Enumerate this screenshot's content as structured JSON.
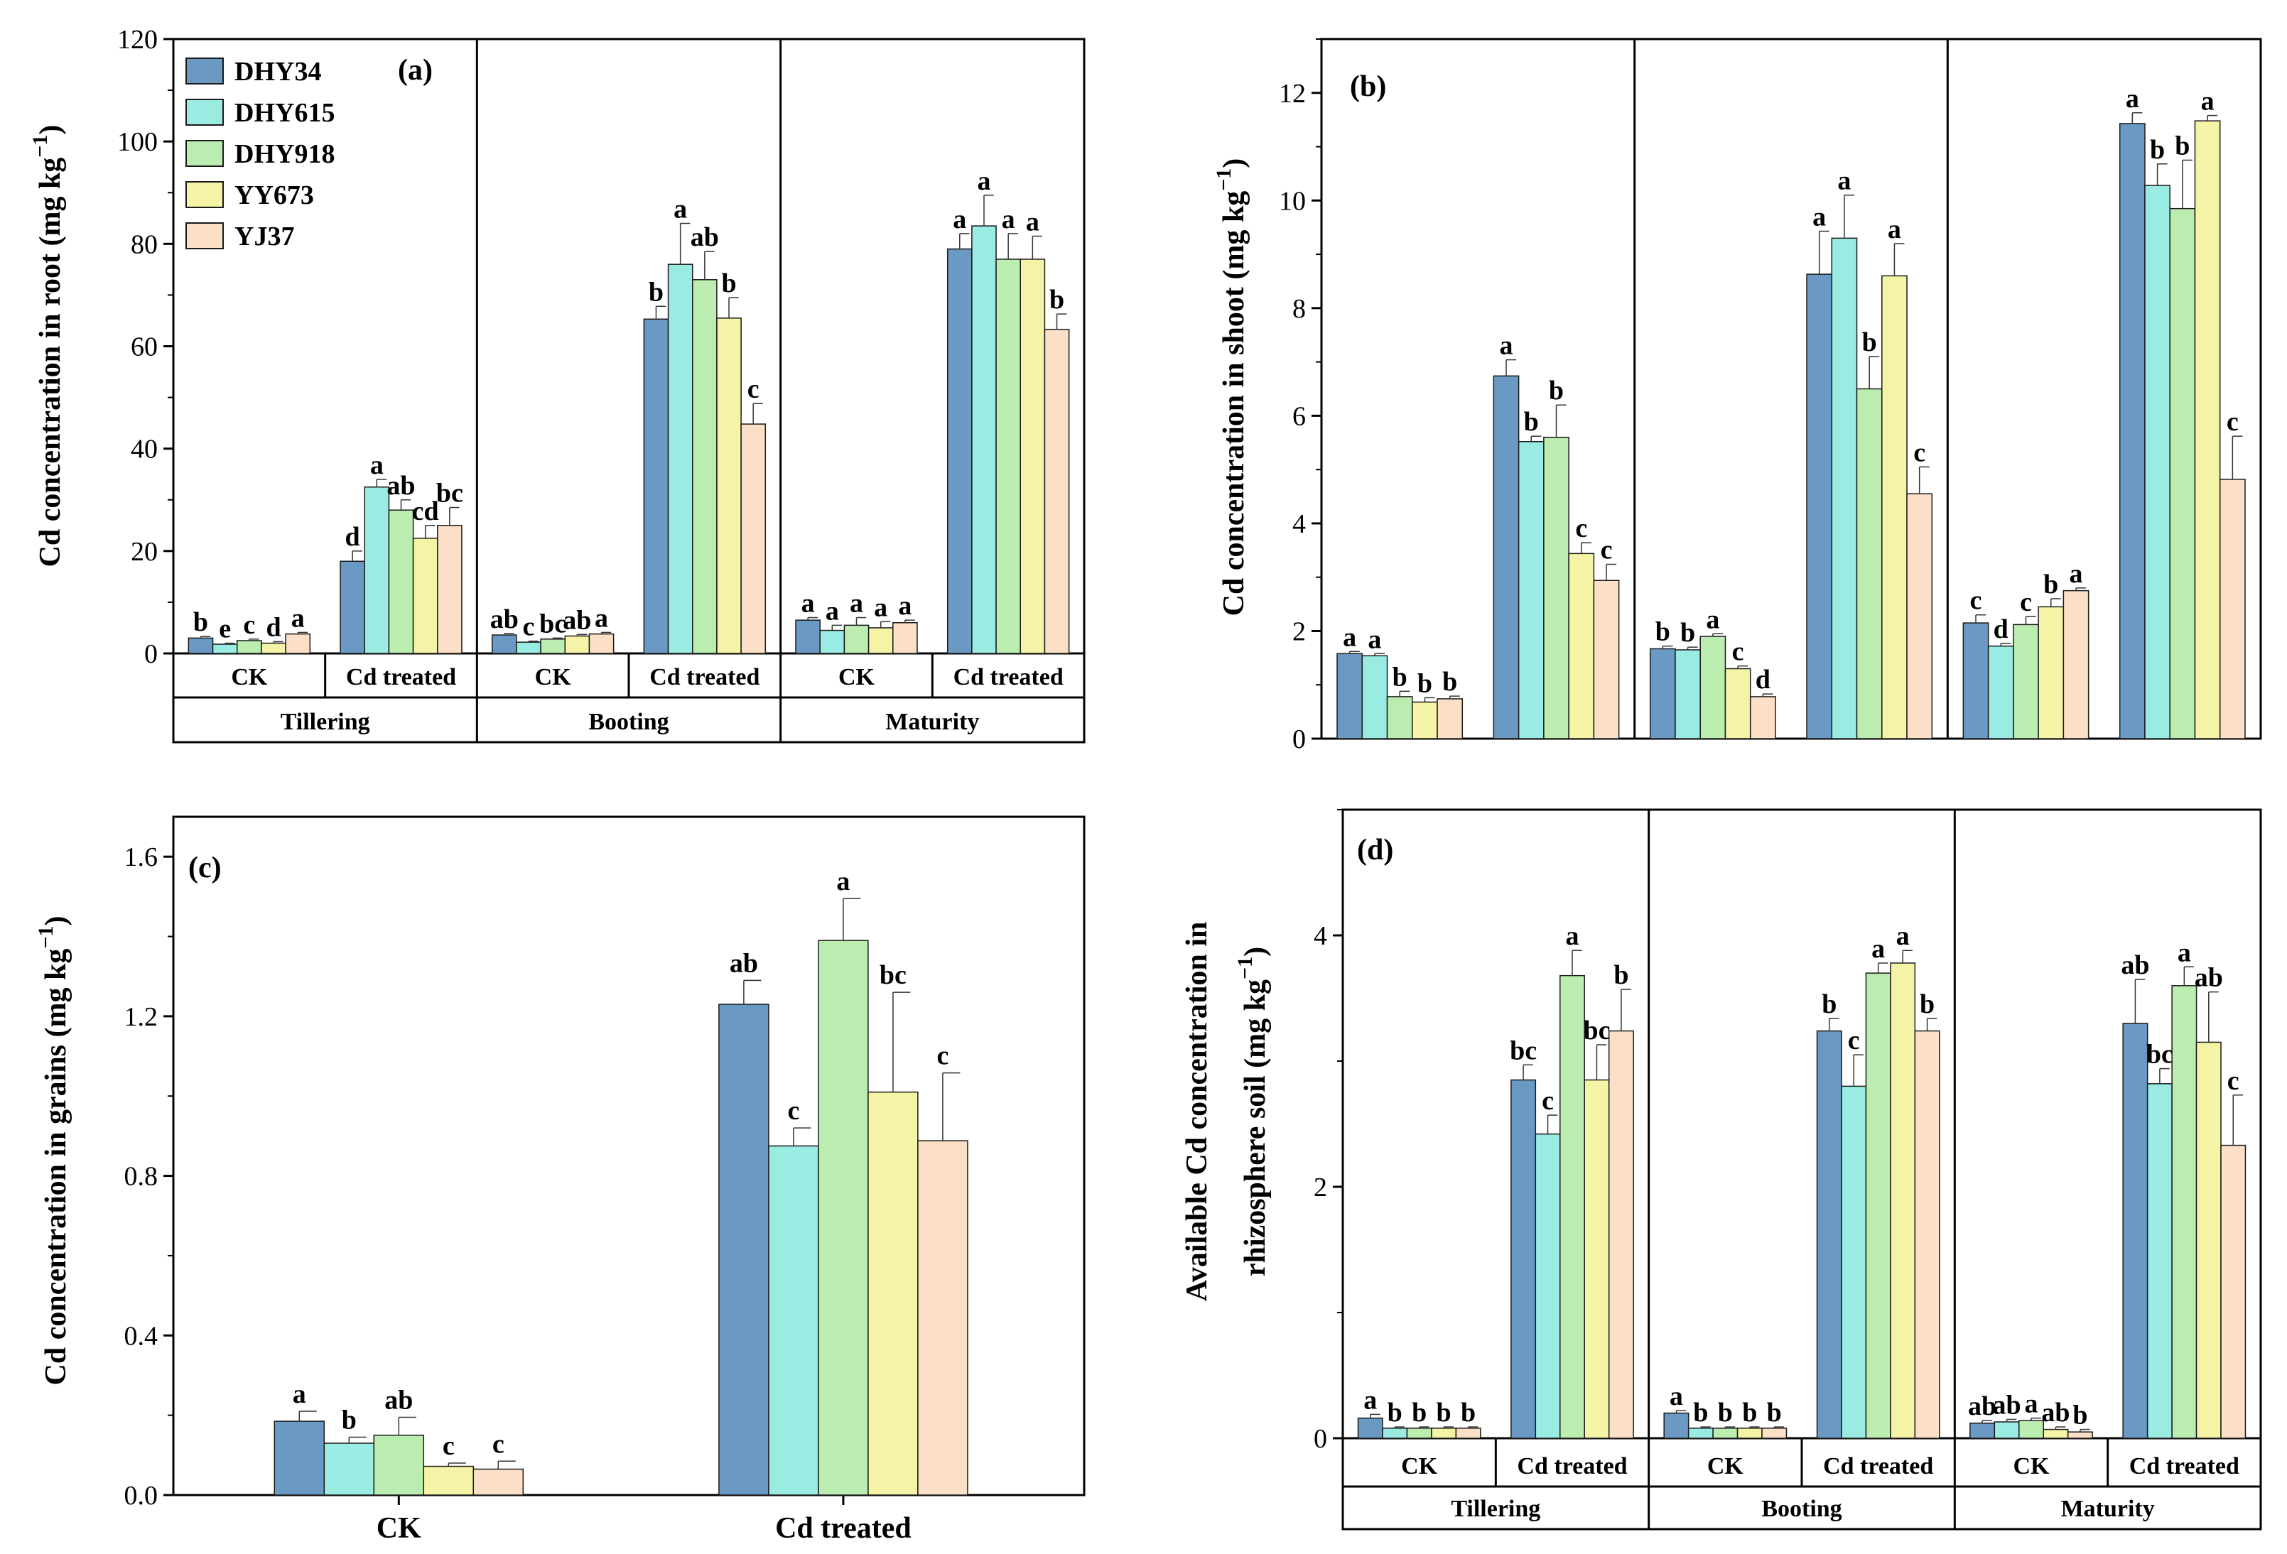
{
  "colors": {
    "DHY34": "#6a9ac4",
    "DHY615": "#9aece2",
    "DHY918": "#bbecb0",
    "YY673": "#f5f3a6",
    "YJ37": "#fbdfc7"
  },
  "chart_data": [
    {
      "id": "a",
      "type": "bar",
      "panel_label": "(a)",
      "ylabel": "Cd concentration in root (mg kg",
      "ylabel_sup": "−1",
      "ylabel_end": ")",
      "ylim": [
        0,
        120
      ],
      "yticks": [
        "0",
        "20",
        "40",
        "60",
        "80",
        "100",
        "120"
      ],
      "ytick_values": [
        0,
        20,
        40,
        60,
        80,
        100,
        120
      ],
      "legend": {
        "position": "top-left",
        "entries": [
          "DHY34",
          "DHY615",
          "DHY918",
          "YY673",
          "YJ37"
        ]
      },
      "stages": [
        "Tillering",
        "Booting",
        "Maturity"
      ],
      "treatments": [
        "CK",
        "Cd treated"
      ],
      "series_names": [
        "DHY34",
        "DHY615",
        "DHY918",
        "YY673",
        "YJ37"
      ],
      "groups": [
        {
          "stage": "Tillering",
          "treatment": "CK",
          "values": [
            3.0,
            1.8,
            2.5,
            2.0,
            3.8
          ],
          "errors": [
            0.3,
            0.2,
            0.3,
            0.3,
            0.3
          ],
          "letters": [
            "b",
            "e",
            "c",
            "d",
            "a"
          ]
        },
        {
          "stage": "Tillering",
          "treatment": "Cd treated",
          "values": [
            18,
            32.5,
            28,
            22.5,
            25
          ],
          "errors": [
            2,
            1.5,
            2,
            2.5,
            3.5
          ],
          "letters": [
            "d",
            "a",
            "ab",
            "cd",
            "bc"
          ]
        },
        {
          "stage": "Booting",
          "treatment": "CK",
          "values": [
            3.6,
            2.2,
            2.8,
            3.4,
            3.8
          ],
          "errors": [
            0.3,
            0.2,
            0.2,
            0.3,
            0.3
          ],
          "letters": [
            "ab",
            "c",
            "bc",
            "ab",
            "a"
          ]
        },
        {
          "stage": "Booting",
          "treatment": "Cd treated",
          "values": [
            65.3,
            76,
            73,
            65.5,
            44.8
          ],
          "errors": [
            2.5,
            8,
            5.5,
            4,
            4
          ],
          "letters": [
            "b",
            "a",
            "ab",
            "b",
            "c"
          ]
        },
        {
          "stage": "Maturity",
          "treatment": "CK",
          "values": [
            6.5,
            4.5,
            5.5,
            5.0,
            6.0
          ],
          "errors": [
            0.5,
            1.0,
            1.5,
            1.2,
            0.5
          ],
          "letters": [
            "a",
            "a",
            "a",
            "a",
            "a"
          ]
        },
        {
          "stage": "Maturity",
          "treatment": "Cd treated",
          "values": [
            79,
            83.5,
            77,
            77,
            63.3
          ],
          "errors": [
            3,
            6,
            5,
            4.5,
            3
          ],
          "letters": [
            "a",
            "a",
            "a",
            "a",
            "b"
          ]
        }
      ]
    },
    {
      "id": "b",
      "type": "bar",
      "panel_label": "(b)",
      "ylabel": "Cd concentration in shoot (mg kg",
      "ylabel_sup": "−1",
      "ylabel_end": ")",
      "ylim": [
        0,
        13
      ],
      "yticks": [
        "0",
        "2",
        "4",
        "6",
        "8",
        "10",
        "12"
      ],
      "ytick_values": [
        0,
        2,
        4,
        6,
        8,
        10,
        12
      ],
      "stages": [
        "Tillering",
        "Booting",
        "Maturity"
      ],
      "treatments": [
        "CK",
        "Cd treated"
      ],
      "series_names": [
        "DHY34",
        "DHY615",
        "DHY918",
        "YY673",
        "YJ37"
      ],
      "groups": [
        {
          "stage": "Tillering",
          "treatment": "CK",
          "values": [
            1.58,
            1.54,
            0.78,
            0.68,
            0.74
          ],
          "errors": [
            0.04,
            0.04,
            0.1,
            0.08,
            0.05
          ],
          "letters": [
            "a",
            "a",
            "b",
            "b",
            "b"
          ]
        },
        {
          "stage": "Tillering",
          "treatment": "Cd treated",
          "values": [
            6.74,
            5.52,
            5.6,
            3.44,
            2.94
          ],
          "errors": [
            0.3,
            0.1,
            0.6,
            0.2,
            0.3
          ],
          "letters": [
            "a",
            "b",
            "b",
            "c",
            "c"
          ]
        },
        {
          "stage": "Booting",
          "treatment": "CK",
          "values": [
            1.67,
            1.65,
            1.9,
            1.3,
            0.78
          ],
          "errors": [
            0.05,
            0.05,
            0.05,
            0.05,
            0.05
          ],
          "letters": [
            "b",
            "b",
            "a",
            "c",
            "d"
          ]
        },
        {
          "stage": "Booting",
          "treatment": "Cd treated",
          "values": [
            8.63,
            9.3,
            6.5,
            8.6,
            4.55
          ],
          "errors": [
            0.8,
            0.8,
            0.6,
            0.6,
            0.5
          ],
          "letters": [
            "a",
            "a",
            "b",
            "a",
            "c"
          ]
        },
        {
          "stage": "Maturity",
          "treatment": "CK",
          "values": [
            2.15,
            1.72,
            2.12,
            2.45,
            2.75
          ],
          "errors": [
            0.15,
            0.05,
            0.15,
            0.15,
            0.05
          ],
          "letters": [
            "c",
            "d",
            "c",
            "b",
            "a"
          ]
        },
        {
          "stage": "Maturity",
          "treatment": "Cd treated",
          "values": [
            11.43,
            10.28,
            9.85,
            11.48,
            4.82
          ],
          "errors": [
            0.2,
            0.4,
            0.9,
            0.1,
            0.8
          ],
          "letters": [
            "a",
            "b",
            "b",
            "a",
            "c"
          ]
        }
      ]
    },
    {
      "id": "c",
      "type": "bar",
      "panel_label": "(c)",
      "ylabel": "Cd concentration in grains (mg kg",
      "ylabel_sup": "−1",
      "ylabel_end": ")",
      "ylim": [
        0,
        1.7
      ],
      "yticks": [
        "0.0",
        "0.4",
        "0.8",
        "1.2",
        "1.6"
      ],
      "ytick_values": [
        0,
        0.4,
        0.8,
        1.2,
        1.6
      ],
      "categories": [
        "CK",
        "Cd treated"
      ],
      "series_names": [
        "DHY34",
        "DHY615",
        "DHY918",
        "YY673",
        "YJ37"
      ],
      "groups": [
        {
          "category": "CK",
          "values": [
            0.185,
            0.13,
            0.15,
            0.072,
            0.065
          ],
          "errors": [
            0.025,
            0.015,
            0.045,
            0.008,
            0.02
          ],
          "letters": [
            "a",
            "b",
            "ab",
            "c",
            "c"
          ]
        },
        {
          "category": "Cd treated",
          "values": [
            1.23,
            0.875,
            1.39,
            1.01,
            0.888
          ],
          "errors": [
            0.06,
            0.045,
            0.105,
            0.25,
            0.17
          ],
          "letters": [
            "ab",
            "c",
            "a",
            "bc",
            "c"
          ]
        }
      ]
    },
    {
      "id": "d",
      "type": "bar",
      "panel_label": "(d)",
      "ylabel_line1": "Available Cd concentration in",
      "ylabel": "rhizosphere soil (mg kg",
      "ylabel_sup": "−1",
      "ylabel_end": ")",
      "ylim": [
        0,
        5
      ],
      "yticks": [
        "0",
        "2",
        "4"
      ],
      "ytick_values": [
        0,
        2,
        4
      ],
      "stages": [
        "Tillering",
        "Booting",
        "Maturity"
      ],
      "treatments": [
        "CK",
        "Cd treated"
      ],
      "series_names": [
        "DHY34",
        "DHY615",
        "DHY918",
        "YY673",
        "YJ37"
      ],
      "groups": [
        {
          "stage": "Tillering",
          "treatment": "CK",
          "values": [
            0.16,
            0.08,
            0.08,
            0.08,
            0.08
          ],
          "errors": [
            0.03,
            0.01,
            0.01,
            0.01,
            0.01
          ],
          "letters": [
            "a",
            "b",
            "b",
            "b",
            "b"
          ]
        },
        {
          "stage": "Tillering",
          "treatment": "Cd treated",
          "values": [
            2.85,
            2.42,
            3.68,
            2.85,
            3.24
          ],
          "errors": [
            0.12,
            0.15,
            0.2,
            0.28,
            0.33
          ],
          "letters": [
            "bc",
            "c",
            "a",
            "bc",
            "b"
          ]
        },
        {
          "stage": "Booting",
          "treatment": "CK",
          "values": [
            0.2,
            0.08,
            0.08,
            0.08,
            0.08
          ],
          "errors": [
            0.02,
            0.01,
            0.01,
            0.01,
            0.01
          ],
          "letters": [
            "a",
            "b",
            "b",
            "b",
            "b"
          ]
        },
        {
          "stage": "Booting",
          "treatment": "Cd treated",
          "values": [
            3.24,
            2.8,
            3.7,
            3.78,
            3.24
          ],
          "errors": [
            0.1,
            0.25,
            0.08,
            0.1,
            0.1
          ],
          "letters": [
            "b",
            "c",
            "a",
            "a",
            "b"
          ]
        },
        {
          "stage": "Maturity",
          "treatment": "CK",
          "values": [
            0.12,
            0.13,
            0.14,
            0.07,
            0.05
          ],
          "errors": [
            0.02,
            0.02,
            0.02,
            0.02,
            0.02
          ],
          "letters": [
            "ab",
            "ab",
            "a",
            "ab",
            "b"
          ]
        },
        {
          "stage": "Maturity",
          "treatment": "Cd treated",
          "values": [
            3.3,
            2.82,
            3.6,
            3.15,
            2.33
          ],
          "errors": [
            0.35,
            0.12,
            0.15,
            0.4,
            0.4
          ],
          "letters": [
            "ab",
            "bc",
            "a",
            "ab",
            "c"
          ]
        }
      ]
    }
  ]
}
